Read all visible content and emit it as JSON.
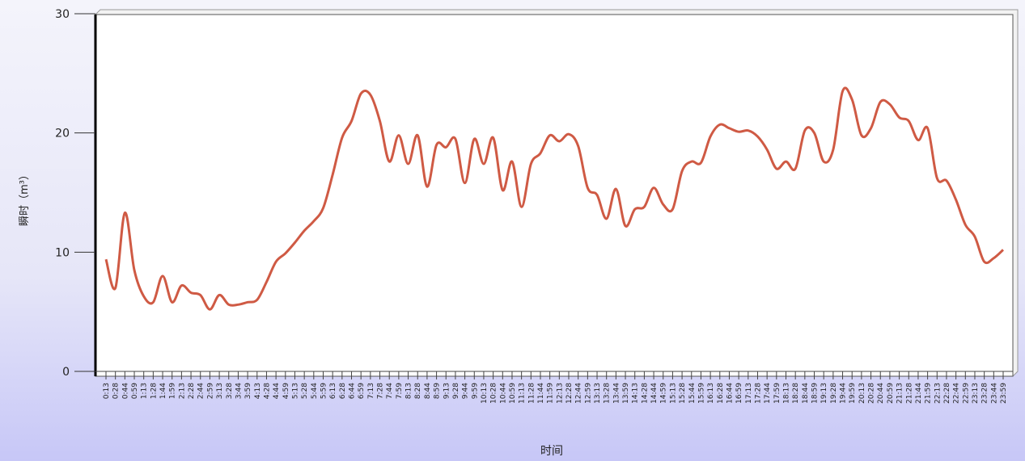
{
  "chart_data": {
    "type": "line",
    "y_label": "瞬时（m³）",
    "x_label": "时间",
    "color": "#cf5a44",
    "ylim": [
      0,
      30
    ],
    "yticks": [
      0,
      10,
      20,
      30
    ],
    "grid": false,
    "categories": [
      "0:13",
      "0:28",
      "0:44",
      "0:59",
      "1:13",
      "1:28",
      "1:44",
      "1:59",
      "2:13",
      "2:28",
      "2:44",
      "2:59",
      "3:13",
      "3:28",
      "3:44",
      "3:59",
      "4:13",
      "4:28",
      "4:44",
      "4:59",
      "5:13",
      "5:28",
      "5:44",
      "5:59",
      "6:13",
      "6:28",
      "6:44",
      "6:59",
      "7:13",
      "7:28",
      "7:44",
      "7:59",
      "8:13",
      "8:28",
      "8:44",
      "8:59",
      "9:13",
      "9:28",
      "9:44",
      "9:59",
      "10:13",
      "10:28",
      "10:44",
      "10:59",
      "11:13",
      "11:28",
      "11:44",
      "11:59",
      "12:13",
      "12:28",
      "12:44",
      "12:59",
      "13:13",
      "13:28",
      "13:44",
      "13:59",
      "14:13",
      "14:28",
      "14:44",
      "14:59",
      "15:13",
      "15:28",
      "15:44",
      "15:59",
      "16:13",
      "16:28",
      "16:44",
      "16:59",
      "17:13",
      "17:28",
      "17:44",
      "17:59",
      "18:13",
      "18:28",
      "18:44",
      "18:59",
      "19:13",
      "19:28",
      "19:44",
      "19:59",
      "20:13",
      "20:28",
      "20:44",
      "20:59",
      "21:13",
      "21:28",
      "21:44",
      "21:59",
      "22:13",
      "22:28",
      "22:44",
      "22:59",
      "23:13",
      "23:28",
      "23:44",
      "23:59"
    ],
    "values": [
      9.4,
      7.0,
      13.3,
      8.5,
      6.3,
      5.8,
      8.0,
      5.8,
      7.2,
      6.6,
      6.4,
      5.2,
      6.4,
      5.6,
      5.6,
      5.8,
      6.0,
      7.5,
      9.2,
      9.9,
      10.8,
      11.8,
      12.6,
      13.7,
      16.5,
      19.6,
      21.0,
      23.3,
      23.2,
      21.0,
      17.6,
      19.8,
      17.4,
      19.8,
      15.5,
      19.0,
      18.8,
      19.5,
      15.8,
      19.5,
      17.4,
      19.6,
      15.2,
      17.6,
      13.8,
      17.4,
      18.3,
      19.8,
      19.3,
      19.9,
      18.9,
      15.4,
      14.8,
      12.8,
      15.3,
      12.2,
      13.6,
      13.8,
      15.4,
      14.0,
      13.6,
      16.8,
      17.6,
      17.5,
      19.7,
      20.7,
      20.4,
      20.1,
      20.2,
      19.7,
      18.6,
      17.0,
      17.6,
      17.0,
      20.2,
      20.0,
      17.6,
      18.6,
      23.5,
      22.8,
      19.8,
      20.4,
      22.6,
      22.4,
      21.3,
      21.0,
      19.4,
      20.4,
      16.2,
      16.0,
      14.4,
      12.3,
      11.3,
      9.2,
      9.5,
      10.2
    ]
  }
}
